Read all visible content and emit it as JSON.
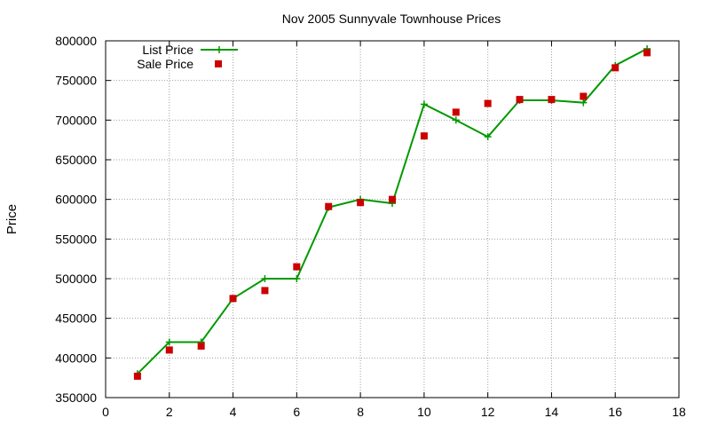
{
  "chart_data": {
    "type": "line",
    "title": "Nov 2005 Sunnyvale Townhouse Prices",
    "xlabel": "",
    "ylabel": "Price",
    "xlim": [
      0,
      18
    ],
    "ylim": [
      350000,
      800000
    ],
    "xticks": [
      0,
      2,
      4,
      6,
      8,
      10,
      12,
      14,
      16,
      18
    ],
    "yticks": [
      350000,
      400000,
      450000,
      500000,
      550000,
      600000,
      650000,
      700000,
      750000,
      800000
    ],
    "grid": true,
    "legend_position": "top-left",
    "series": [
      {
        "name": "List Price",
        "style": "linespoints",
        "marker": "plus",
        "color": "#009900",
        "x": [
          1,
          2,
          3,
          4,
          5,
          6,
          7,
          8,
          9,
          10,
          11,
          12,
          13,
          14,
          15,
          16,
          17
        ],
        "y": [
          380000,
          420000,
          420000,
          475000,
          500000,
          500000,
          590000,
          600000,
          595000,
          720000,
          700000,
          679000,
          725000,
          725000,
          722000,
          769000,
          790000
        ]
      },
      {
        "name": "Sale Price",
        "style": "points",
        "marker": "square",
        "color": "#cc0000",
        "x": [
          1,
          2,
          3,
          4,
          5,
          6,
          7,
          8,
          9,
          10,
          11,
          12,
          13,
          14,
          15,
          16,
          17
        ],
        "y": [
          377000,
          410000,
          415000,
          475000,
          485000,
          515000,
          591000,
          596000,
          600000,
          680000,
          710000,
          721000,
          726000,
          726000,
          730000,
          766000,
          785000
        ]
      }
    ]
  }
}
